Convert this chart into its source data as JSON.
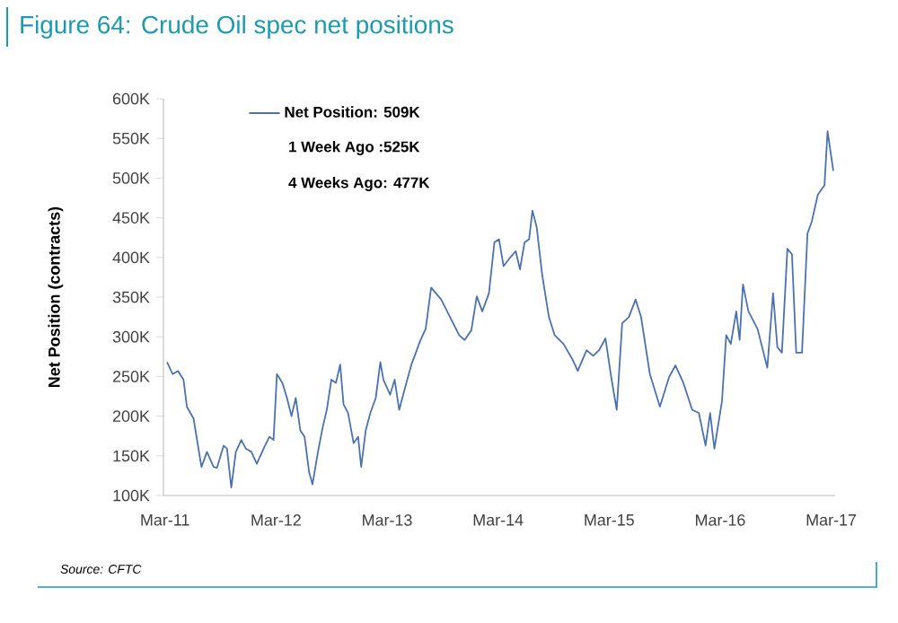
{
  "chart_data": {
    "type": "line",
    "title": "Figure 64: Crude Oil spec net positions",
    "ylabel": "Net Position (contracts)",
    "annotations": [
      "1 Week Ago :525K",
      "4 Weeks Ago: 477K",
      "Source: CFTC"
    ],
    "legend": "top left",
    "marker": "none",
    "line_style": "solid",
    "xlim": [
      "2011-02-24",
      "2017-03-14"
    ],
    "xticks": [
      {
        "value": "2011-03",
        "label": "Mar-11"
      },
      {
        "value": "2012-03",
        "label": "Mar-12"
      },
      {
        "value": "2013-03",
        "label": "Mar-13"
      },
      {
        "value": "2014-03",
        "label": "Mar-14"
      },
      {
        "value": "2015-03",
        "label": "Mar-15"
      },
      {
        "value": "2016-03",
        "label": "Mar-16"
      },
      {
        "value": "2017-03",
        "label": "Mar-17"
      }
    ],
    "ylim": [
      100,
      600
    ],
    "yticks": [
      {
        "value": 100,
        "label": "100K"
      },
      {
        "value": 150,
        "label": "150K"
      },
      {
        "value": 200,
        "label": "200K"
      },
      {
        "value": 250,
        "label": "250K"
      },
      {
        "value": 300,
        "label": "300K"
      },
      {
        "value": 350,
        "label": "350K"
      },
      {
        "value": 400,
        "label": "400K"
      },
      {
        "value": 450,
        "label": "450K"
      },
      {
        "value": 500,
        "label": "500K"
      },
      {
        "value": 550,
        "label": "550K"
      },
      {
        "value": 600,
        "label": "600K"
      }
    ],
    "series": [
      {
        "name": "Net Position: 509K",
        "color": "#4a72b0",
        "x": [
          "2011-03-08",
          "2011-03-26",
          "2011-04-13",
          "2011-05-01",
          "2011-05-12",
          "2011-06-03",
          "2011-06-29",
          "2011-07-17",
          "2011-08-08",
          "2011-08-19",
          "2011-09-10",
          "2011-09-21",
          "2011-10-05",
          "2011-10-20",
          "2011-11-07",
          "2011-11-22",
          "2011-12-10",
          "2011-12-28",
          "2012-01-19",
          "2012-02-07",
          "2012-02-21",
          "2012-03-04",
          "2012-03-22",
          "2012-04-06",
          "2012-04-21",
          "2012-05-05",
          "2012-05-20",
          "2012-06-03",
          "2012-06-18",
          "2012-06-29",
          "2012-07-17",
          "2012-08-01",
          "2012-08-15",
          "2012-08-30",
          "2012-09-14",
          "2012-09-28",
          "2012-10-09",
          "2012-10-24",
          "2012-11-11",
          "2012-11-26",
          "2012-12-06",
          "2012-12-21",
          "2013-01-05",
          "2013-01-23",
          "2013-02-07",
          "2013-02-17",
          "2013-03-11",
          "2013-03-26",
          "2013-04-10",
          "2013-04-28",
          "2013-05-20",
          "2013-05-31",
          "2013-06-18",
          "2013-07-06",
          "2013-07-24",
          "2013-08-26",
          "2013-09-24",
          "2013-10-24",
          "2013-11-11",
          "2013-12-03",
          "2013-12-21",
          "2014-01-08",
          "2014-01-30",
          "2014-02-17",
          "2014-03-04",
          "2014-03-19",
          "2014-04-10",
          "2014-04-28",
          "2014-05-12",
          "2014-05-27",
          "2014-06-11",
          "2014-06-22",
          "2014-07-06",
          "2014-07-24",
          "2014-08-15",
          "2014-09-03",
          "2014-10-02",
          "2014-10-31",
          "2014-11-18",
          "2014-12-17",
          "2015-01-08",
          "2015-01-27",
          "2015-02-17",
          "2015-03-08",
          "2015-03-26",
          "2015-04-13",
          "2015-05-05",
          "2015-05-27",
          "2015-06-14",
          "2015-07-13",
          "2015-08-15",
          "2015-09-14",
          "2015-10-05",
          "2015-10-31",
          "2015-11-29",
          "2015-12-21",
          "2016-01-12",
          "2016-01-27",
          "2016-02-10",
          "2016-03-07",
          "2016-03-21",
          "2016-04-05",
          "2016-04-23",
          "2016-05-04",
          "2016-05-15",
          "2016-06-02",
          "2016-07-02",
          "2016-08-03",
          "2016-08-22",
          "2016-09-05",
          "2016-09-20",
          "2016-10-08",
          "2016-10-23",
          "2016-11-06",
          "2016-11-25",
          "2016-12-13",
          "2016-12-27",
          "2017-01-16",
          "2017-02-07",
          "2017-02-17",
          "2017-03-08"
        ],
        "values": [
          268,
          253,
          257,
          246,
          212,
          197,
          136,
          155,
          136,
          135,
          163,
          159,
          110,
          155,
          170,
          159,
          155,
          140,
          159,
          174,
          170,
          253,
          242,
          223,
          200,
          223,
          182,
          174,
          129,
          114,
          155,
          185,
          208,
          246,
          242,
          265,
          215,
          204,
          166,
          174,
          136,
          182,
          204,
          223,
          268,
          246,
          227,
          246,
          208,
          234,
          265,
          276,
          295,
          310,
          362,
          347,
          325,
          302,
          296,
          308,
          351,
          332,
          355,
          419,
          423,
          389,
          400,
          408,
          385,
          419,
          423,
          459,
          438,
          378,
          325,
          302,
          291,
          272,
          257,
          283,
          276,
          283,
          298,
          249,
          208,
          317,
          325,
          347,
          325,
          253,
          212,
          249,
          264,
          242,
          208,
          204,
          163,
          204,
          159,
          219,
          302,
          291,
          332,
          296,
          366,
          332,
          310,
          261,
          355,
          287,
          280,
          411,
          404,
          280,
          280,
          430,
          445,
          479,
          491,
          559,
          509
        ]
      }
    ]
  }
}
